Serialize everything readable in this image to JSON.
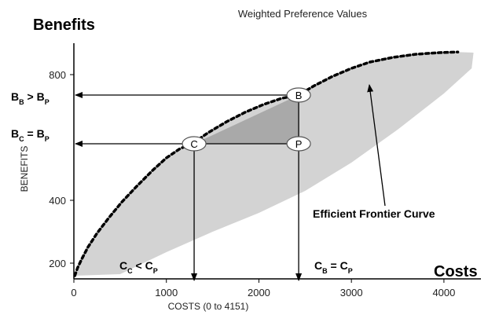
{
  "chart_data": {
    "type": "scatter",
    "title": "Weighted Preference Values",
    "corner_labels": {
      "y": "Benefits",
      "x": "Costs"
    },
    "xlabel": "COSTS  (0 to 4151)",
    "ylabel": "BENEFITS",
    "xlim": [
      0,
      4400
    ],
    "ylim": [
      150,
      900
    ],
    "x_ticks": [
      "0",
      "1000",
      "2000",
      "3000",
      "4000"
    ],
    "y_ticks": [
      "200",
      "400",
      "800"
    ],
    "y_tick_values": [
      200,
      400,
      800
    ],
    "x_tick_values": [
      0,
      1000,
      2000,
      3000,
      4000
    ],
    "frontier_label": "Efficient Frontier Curve",
    "frontier": {
      "x": [
        10,
        40,
        80,
        150,
        250,
        380,
        520,
        680,
        850,
        1000,
        1150,
        1280,
        1450,
        1650,
        1850,
        2050,
        2250,
        2430,
        2600,
        2800,
        3000,
        3200,
        3450,
        3700,
        3950,
        4150
      ],
      "y": [
        160,
        185,
        210,
        250,
        295,
        345,
        395,
        445,
        495,
        535,
        565,
        580,
        615,
        650,
        680,
        705,
        725,
        735,
        765,
        795,
        820,
        840,
        855,
        865,
        870,
        872
      ]
    },
    "feasible_lower": {
      "x": [
        10,
        500,
        1000,
        1500,
        2000,
        2500,
        3000,
        3500,
        4000,
        4300
      ],
      "y": [
        160,
        165,
        235,
        300,
        360,
        430,
        520,
        625,
        740,
        820
      ]
    },
    "points": [
      {
        "name": "C",
        "x": 1300,
        "y": 580
      },
      {
        "name": "P",
        "x": 2430,
        "y": 580
      },
      {
        "name": "B",
        "x": 2430,
        "y": 735
      }
    ],
    "annotations": {
      "bb_gt_bp": {
        "main": "B",
        "sub1": "B",
        "op": " > B",
        "sub2": "P"
      },
      "bc_eq_bp": {
        "main": "B",
        "sub1": "C",
        "op": " = B",
        "sub2": "P"
      },
      "cc_lt_cp": {
        "main": "C",
        "sub1": "C",
        "op": " < C",
        "sub2": "P"
      },
      "cb_eq_cp": {
        "main": "C",
        "sub1": "B",
        "op": " = C",
        "sub2": "P"
      }
    },
    "colors": {
      "region": "#d3d3d3",
      "triangle": "#a9a9a9",
      "curve": "#000000"
    }
  }
}
